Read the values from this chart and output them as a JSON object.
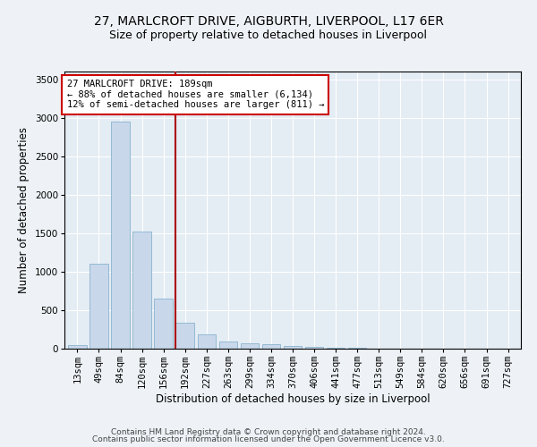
{
  "title_line1": "27, MARLCROFT DRIVE, AIGBURTH, LIVERPOOL, L17 6ER",
  "title_line2": "Size of property relative to detached houses in Liverpool",
  "xlabel": "Distribution of detached houses by size in Liverpool",
  "ylabel": "Number of detached properties",
  "bar_labels": [
    "13sqm",
    "49sqm",
    "84sqm",
    "120sqm",
    "156sqm",
    "192sqm",
    "227sqm",
    "263sqm",
    "299sqm",
    "334sqm",
    "370sqm",
    "406sqm",
    "441sqm",
    "477sqm",
    "513sqm",
    "549sqm",
    "584sqm",
    "620sqm",
    "656sqm",
    "691sqm",
    "727sqm"
  ],
  "bar_values": [
    50,
    1105,
    2950,
    1520,
    650,
    340,
    190,
    90,
    75,
    55,
    40,
    20,
    10,
    8,
    5,
    3,
    2,
    1,
    1,
    1,
    0
  ],
  "bar_color": "#c8d8ea",
  "bar_edge_color": "#7aaac8",
  "vline_index": 5,
  "vline_color": "#aa0000",
  "annotation_text": "27 MARLCROFT DRIVE: 189sqm\n← 88% of detached houses are smaller (6,134)\n12% of semi-detached houses are larger (811) →",
  "annotation_box_color": "#ffffff",
  "annotation_box_edgecolor": "#cc0000",
  "ylim": [
    0,
    3600
  ],
  "yticks": [
    0,
    500,
    1000,
    1500,
    2000,
    2500,
    3000,
    3500
  ],
  "footer_line1": "Contains HM Land Registry data © Crown copyright and database right 2024.",
  "footer_line2": "Contains public sector information licensed under the Open Government Licence v3.0.",
  "bg_color": "#eef2f6",
  "plot_bg_color": "#e4ecf4",
  "grid_color": "#ffffff",
  "title_fontsize": 10,
  "subtitle_fontsize": 9,
  "axis_label_fontsize": 8.5,
  "tick_fontsize": 7.5,
  "footer_fontsize": 6.5,
  "annotation_fontsize": 7.5
}
